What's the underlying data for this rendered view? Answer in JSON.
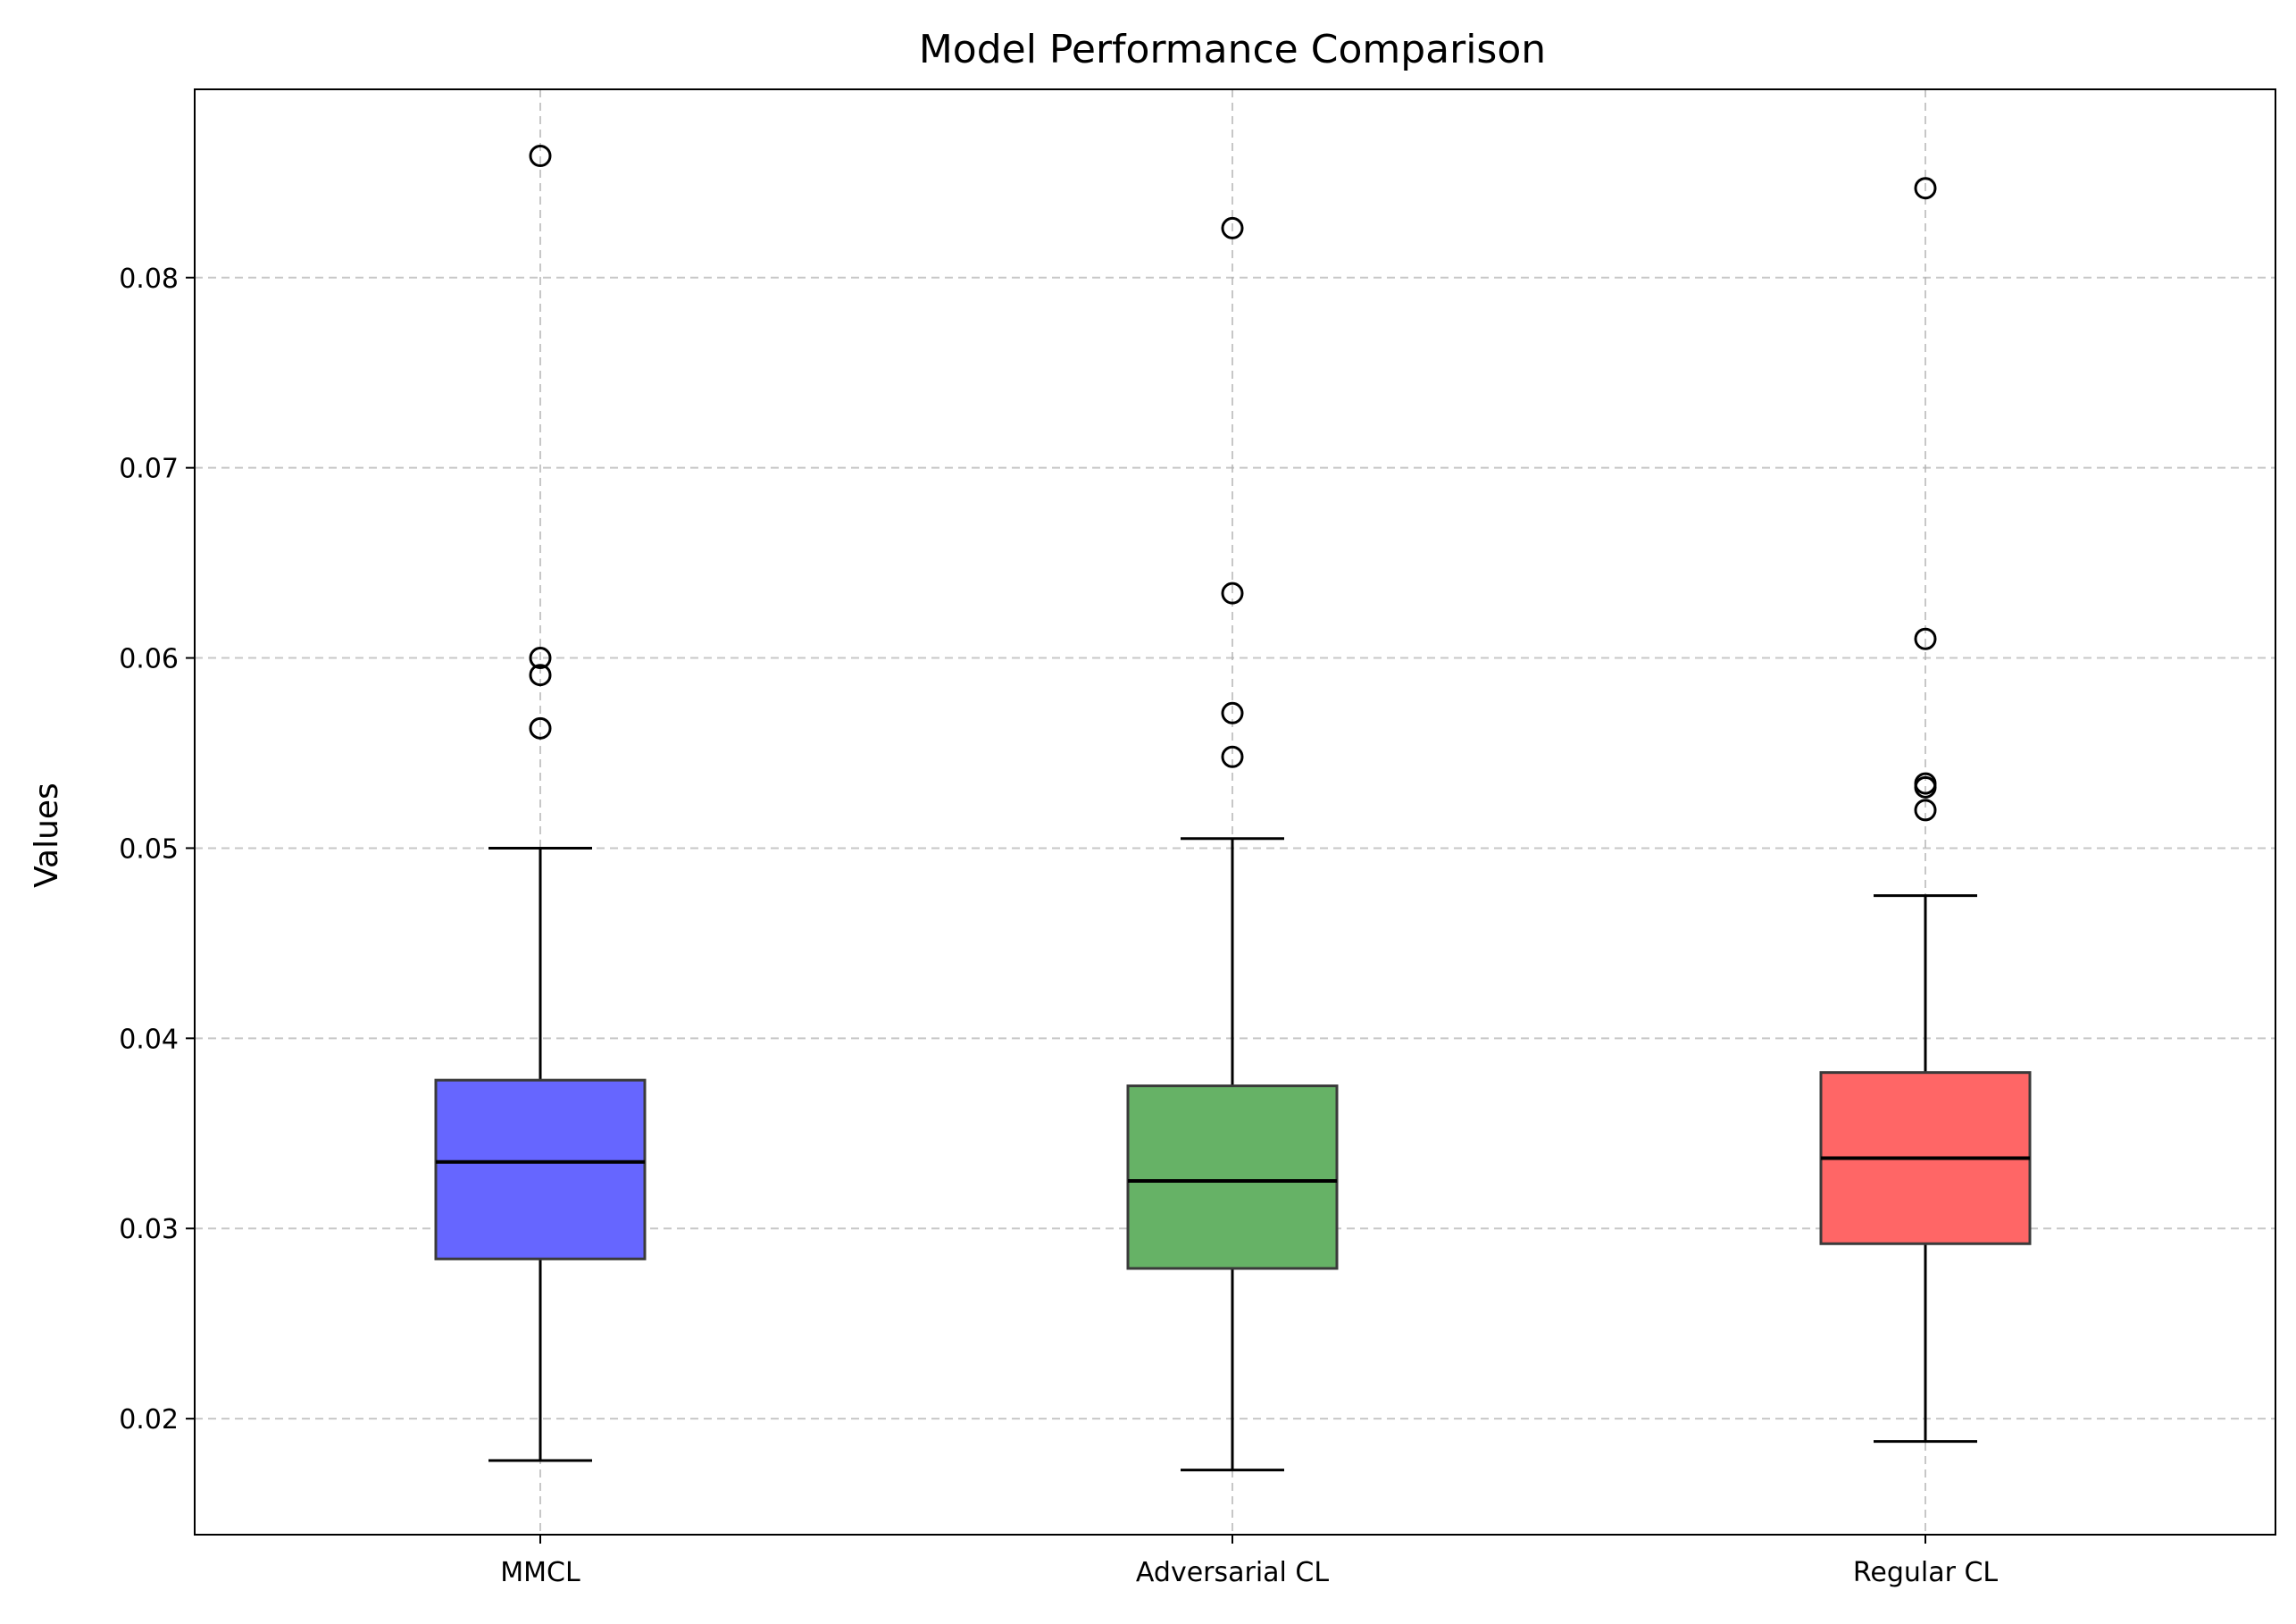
{
  "chart_data": {
    "type": "box",
    "title": "Model Performance Comparison",
    "xlabel": "",
    "ylabel": "Values",
    "ylim": [
      0.0139,
      0.0899
    ],
    "yticks": [
      0.02,
      0.03,
      0.04,
      0.05,
      0.06,
      0.07,
      0.08
    ],
    "ytick_labels": [
      "0.02",
      "0.03",
      "0.04",
      "0.05",
      "0.06",
      "0.07",
      "0.08"
    ],
    "grid": true,
    "categories": [
      "MMCL",
      "Adversarial CL",
      "Regular CL"
    ],
    "boxes": [
      {
        "name": "MMCL",
        "color": "#6666ff",
        "whisker_low": 0.0178,
        "q1": 0.0284,
        "median": 0.0335,
        "q3": 0.0378,
        "whisker_high": 0.05,
        "outliers": [
          0.0563,
          0.0591,
          0.06,
          0.0864
        ]
      },
      {
        "name": "Adversarial CL",
        "color": "#66b266",
        "whisker_low": 0.0173,
        "q1": 0.0279,
        "median": 0.0325,
        "q3": 0.0375,
        "whisker_high": 0.0505,
        "outliers": [
          0.0548,
          0.0571,
          0.0634,
          0.0826
        ]
      },
      {
        "name": "Regular CL",
        "color": "#ff6666",
        "whisker_low": 0.0188,
        "q1": 0.0292,
        "median": 0.0337,
        "q3": 0.0382,
        "whisker_high": 0.0475,
        "outliers": [
          0.052,
          0.0532,
          0.0534,
          0.061,
          0.0847
        ]
      }
    ]
  }
}
